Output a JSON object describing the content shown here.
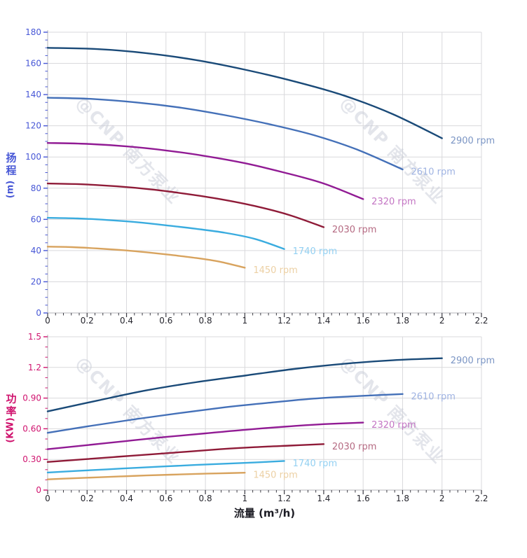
{
  "figure": {
    "background": "#ffffff",
    "xlabel": "流量 (m³/h)",
    "x_tick_color": "#26262e",
    "grid_color": "#d9d9dc",
    "axis_line_color": "#b3b3ba",
    "watermark": {
      "logo": "@",
      "text": "CNP 南方泵业",
      "color": "#c9cdd8",
      "opacity": 0.5,
      "angle_deg": 46
    }
  },
  "chart_data": [
    {
      "id": "head",
      "type": "line",
      "ylabel": "扬程 (m)",
      "ylabel_chars": [
        "扬",
        "程"
      ],
      "ylabel_unit": "(m)",
      "axis_color": "#4757d6",
      "xlim": [
        0,
        2.2
      ],
      "ylim": [
        0,
        180
      ],
      "grid": true,
      "x_tick_values": [
        0,
        0.2,
        0.4,
        0.6,
        0.8,
        1,
        1.2,
        1.4,
        1.6,
        1.8,
        2,
        2.2
      ],
      "x_tick_labels": [
        "0",
        "0.2",
        "0.4",
        "0.6",
        "0.8",
        "1",
        "1.2",
        "1.4",
        "1.6",
        "1.8",
        "2",
        "2.2"
      ],
      "x_minor_step": 0.04,
      "y_tick_values": [
        0,
        20,
        40,
        60,
        80,
        100,
        120,
        140,
        160,
        180
      ],
      "y_tick_labels": [
        "0",
        "20",
        "40",
        "60",
        "80",
        "100",
        "120",
        "140",
        "160",
        "180"
      ],
      "y_minor_step": 5,
      "legend": "end-of-line labels",
      "series": [
        {
          "name": "2900 rpm",
          "rpm": 2900,
          "color": "#1a4a78",
          "label_color": "#7b95c4",
          "points": [
            [
              0,
              170
            ],
            [
              0.25,
              169.2
            ],
            [
              0.5,
              166.6
            ],
            [
              0.75,
              162.2
            ],
            [
              1,
              156
            ],
            [
              1.25,
              148.5
            ],
            [
              1.5,
              139.5
            ],
            [
              1.75,
              127.5
            ],
            [
              2,
              112
            ]
          ]
        },
        {
          "name": "2610 rpm",
          "rpm": 2610,
          "color": "#4470b8",
          "label_color": "#9fb3e2",
          "points": [
            [
              0,
              138
            ],
            [
              0.225,
              137.2
            ],
            [
              0.45,
              135
            ],
            [
              0.675,
              131.6
            ],
            [
              0.9,
              126.8
            ],
            [
              1.125,
              121
            ],
            [
              1.35,
              114
            ],
            [
              1.575,
              104.5
            ],
            [
              1.8,
              92
            ]
          ]
        },
        {
          "name": "2320 rpm",
          "rpm": 2320,
          "color": "#911b94",
          "label_color": "#c375c3",
          "points": [
            [
              0,
              109
            ],
            [
              0.2,
              108.4
            ],
            [
              0.4,
              106.8
            ],
            [
              0.6,
              104.2
            ],
            [
              0.8,
              100.6
            ],
            [
              1,
              96
            ],
            [
              1.2,
              90
            ],
            [
              1.4,
              83
            ],
            [
              1.6,
              73
            ]
          ]
        },
        {
          "name": "2030 rpm",
          "rpm": 2030,
          "color": "#8f1b38",
          "label_color": "#b56a82",
          "points": [
            [
              0,
              83
            ],
            [
              0.175,
              82.5
            ],
            [
              0.35,
              81.2
            ],
            [
              0.525,
              79.2
            ],
            [
              0.7,
              76.4
            ],
            [
              0.875,
              73
            ],
            [
              1.05,
              68.6
            ],
            [
              1.225,
              62.8
            ],
            [
              1.4,
              55
            ]
          ]
        },
        {
          "name": "1740 rpm",
          "rpm": 1740,
          "color": "#3aacdf",
          "label_color": "#93d0f2",
          "points": [
            [
              0,
              61
            ],
            [
              0.15,
              60.6
            ],
            [
              0.3,
              59.6
            ],
            [
              0.45,
              58.2
            ],
            [
              0.6,
              56.2
            ],
            [
              0.75,
              54
            ],
            [
              0.9,
              51.4
            ],
            [
              1.05,
              47.5
            ],
            [
              1.2,
              41
            ]
          ]
        },
        {
          "name": "1450 rpm",
          "rpm": 1450,
          "color": "#d8a35e",
          "label_color": "#ecd0a4",
          "points": [
            [
              0,
              42.5
            ],
            [
              0.125,
              42.2
            ],
            [
              0.25,
              41.4
            ],
            [
              0.375,
              40.3
            ],
            [
              0.5,
              38.9
            ],
            [
              0.625,
              37.2
            ],
            [
              0.75,
              35.3
            ],
            [
              0.875,
              32.8
            ],
            [
              1,
              29
            ]
          ]
        }
      ]
    },
    {
      "id": "power",
      "type": "line",
      "ylabel": "功率 (KW)",
      "ylabel_chars": [
        "功",
        "率"
      ],
      "ylabel_unit": "(KW)",
      "axis_color": "#d0146f",
      "xlim": [
        0,
        2.2
      ],
      "ylim": [
        0,
        1.5
      ],
      "grid": true,
      "xlabel": "流量 (m³/h)",
      "x_tick_values": [
        0,
        0.2,
        0.4,
        0.6,
        0.8,
        1,
        1.2,
        1.4,
        1.6,
        1.8,
        2,
        2.2
      ],
      "x_tick_labels": [
        "0",
        "0.2",
        "0.4",
        "0.6",
        "0.8",
        "1",
        "1.2",
        "1.4",
        "1.6",
        "1.8",
        "2",
        "2.2"
      ],
      "x_minor_step": 0.04,
      "y_tick_values": [
        0,
        0.3,
        0.6,
        0.9,
        1.2,
        1.5
      ],
      "y_tick_labels": [
        "0",
        "0.30",
        "0.60",
        "0.90",
        "1.2",
        "1.5"
      ],
      "y_minor_step": 0.1,
      "legend": "end-of-line labels",
      "series": [
        {
          "name": "2900 rpm",
          "rpm": 2900,
          "color": "#1a4a78",
          "label_color": "#7b95c4",
          "points": [
            [
              0,
              0.77
            ],
            [
              0.25,
              0.875
            ],
            [
              0.5,
              0.975
            ],
            [
              0.75,
              1.055
            ],
            [
              1,
              1.12
            ],
            [
              1.25,
              1.185
            ],
            [
              1.5,
              1.235
            ],
            [
              1.75,
              1.27
            ],
            [
              2,
              1.29
            ]
          ]
        },
        {
          "name": "2610 rpm",
          "rpm": 2610,
          "color": "#4470b8",
          "label_color": "#9fb3e2",
          "points": [
            [
              0,
              0.56
            ],
            [
              0.225,
              0.63
            ],
            [
              0.45,
              0.695
            ],
            [
              0.675,
              0.755
            ],
            [
              0.9,
              0.81
            ],
            [
              1.125,
              0.855
            ],
            [
              1.35,
              0.895
            ],
            [
              1.575,
              0.92
            ],
            [
              1.8,
              0.94
            ]
          ]
        },
        {
          "name": "2320 rpm",
          "rpm": 2320,
          "color": "#911b94",
          "label_color": "#c375c3",
          "points": [
            [
              0,
              0.4
            ],
            [
              0.2,
              0.44
            ],
            [
              0.4,
              0.48
            ],
            [
              0.6,
              0.52
            ],
            [
              0.8,
              0.555
            ],
            [
              1,
              0.59
            ],
            [
              1.2,
              0.62
            ],
            [
              1.4,
              0.645
            ],
            [
              1.6,
              0.66
            ]
          ]
        },
        {
          "name": "2030 rpm",
          "rpm": 2030,
          "color": "#8f1b38",
          "label_color": "#b56a82",
          "points": [
            [
              0,
              0.275
            ],
            [
              0.175,
              0.3
            ],
            [
              0.35,
              0.325
            ],
            [
              0.525,
              0.35
            ],
            [
              0.7,
              0.375
            ],
            [
              0.875,
              0.4
            ],
            [
              1.05,
              0.42
            ],
            [
              1.225,
              0.435
            ],
            [
              1.4,
              0.45
            ]
          ]
        },
        {
          "name": "1740 rpm",
          "rpm": 1740,
          "color": "#3aacdf",
          "label_color": "#93d0f2",
          "points": [
            [
              0,
              0.172
            ],
            [
              0.15,
              0.188
            ],
            [
              0.3,
              0.203
            ],
            [
              0.45,
              0.218
            ],
            [
              0.6,
              0.232
            ],
            [
              0.75,
              0.246
            ],
            [
              0.9,
              0.258
            ],
            [
              1.05,
              0.27
            ],
            [
              1.2,
              0.285
            ]
          ]
        },
        {
          "name": "1450 rpm",
          "rpm": 1450,
          "color": "#d8a35e",
          "label_color": "#ecd0a4",
          "points": [
            [
              0,
              0.105
            ],
            [
              0.125,
              0.115
            ],
            [
              0.25,
              0.125
            ],
            [
              0.375,
              0.134
            ],
            [
              0.5,
              0.143
            ],
            [
              0.625,
              0.151
            ],
            [
              0.75,
              0.158
            ],
            [
              0.875,
              0.164
            ],
            [
              1,
              0.17
            ]
          ]
        }
      ]
    }
  ]
}
